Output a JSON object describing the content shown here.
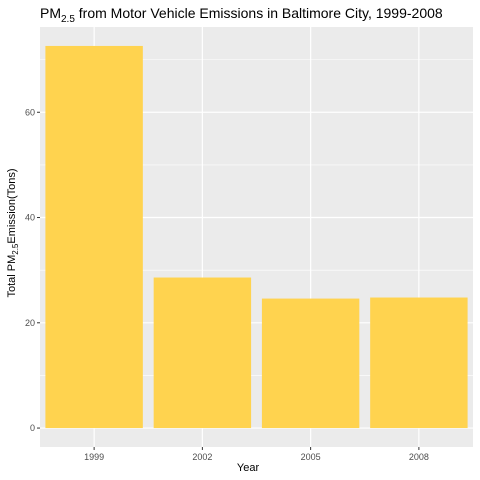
{
  "chart_data": {
    "type": "bar",
    "title": {
      "prefix": "PM",
      "sub": "2.5",
      "suffix": " from Motor Vehicle Emissions in Baltimore City, 1999-2008"
    },
    "xlabel": "Year",
    "ylabel": {
      "prefix": "Total PM",
      "sub": "2.5",
      "suffix": "Emission(Tons)"
    },
    "categories": [
      "1999",
      "2002",
      "2005",
      "2008"
    ],
    "values": [
      72.6,
      28.6,
      24.6,
      24.8
    ],
    "ylim": [
      -3.6,
      76.2
    ],
    "yticks": [
      0,
      20,
      40,
      60
    ],
    "bar_color": "#FFD34F",
    "panel_color": "#EBEBEB",
    "grid": true,
    "legend": "none"
  }
}
